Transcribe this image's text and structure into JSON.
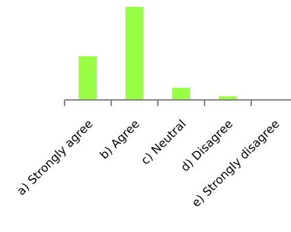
{
  "chart_data": {
    "type": "bar",
    "categories": [
      "a) Strongly agree",
      "b) Agree",
      "c) Neutral",
      "d) Disagree",
      "e) Strongly disagree"
    ],
    "values": [
      47,
      100,
      13,
      4,
      0
    ],
    "ylim": [
      0,
      100
    ],
    "grid": false,
    "legend": "none",
    "bar_color": "#99ff44",
    "axis_color": "#808080",
    "label_color": "#000000"
  }
}
